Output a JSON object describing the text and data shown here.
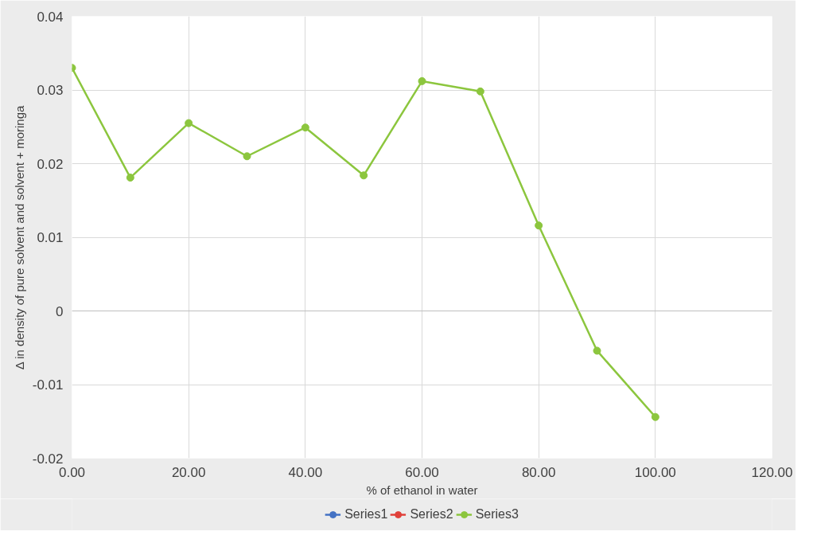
{
  "chart_data": {
    "type": "line",
    "xlabel": "% of ethanol in water",
    "ylabel": "Δ in density of pure solvent and solvent + moringa",
    "x": [
      0,
      10,
      20,
      30,
      40,
      50,
      60,
      70,
      80,
      90,
      100
    ],
    "series": [
      {
        "name": "Series1",
        "color": "#4472c4",
        "values": [
          null,
          null,
          null,
          null,
          null,
          null,
          null,
          null,
          null,
          null,
          null
        ]
      },
      {
        "name": "Series2",
        "color": "#e0413a",
        "values": [
          null,
          null,
          null,
          null,
          null,
          null,
          null,
          null,
          null,
          null,
          null
        ]
      },
      {
        "name": "Series3",
        "color": "#8cc63e",
        "values": [
          0.033,
          0.0181,
          0.0255,
          0.021,
          0.0249,
          0.0184,
          0.0312,
          0.0298,
          0.0116,
          -0.0054,
          -0.0144
        ]
      }
    ],
    "xlim": [
      0,
      120
    ],
    "xticks": [
      {
        "value": 0,
        "label": "0.00"
      },
      {
        "value": 20,
        "label": "20.00"
      },
      {
        "value": 40,
        "label": "40.00"
      },
      {
        "value": 60,
        "label": "60.00"
      },
      {
        "value": 80,
        "label": "80.00"
      },
      {
        "value": 100,
        "label": "100.00"
      },
      {
        "value": 120,
        "label": "120.00"
      }
    ],
    "ylim": [
      -0.02,
      0.04
    ],
    "yticks": [
      -0.02,
      -0.01,
      0,
      0.01,
      0.02,
      0.03,
      0.04
    ],
    "grid": true,
    "legend": "bottom",
    "marker": "circle",
    "line_style": "solid"
  }
}
